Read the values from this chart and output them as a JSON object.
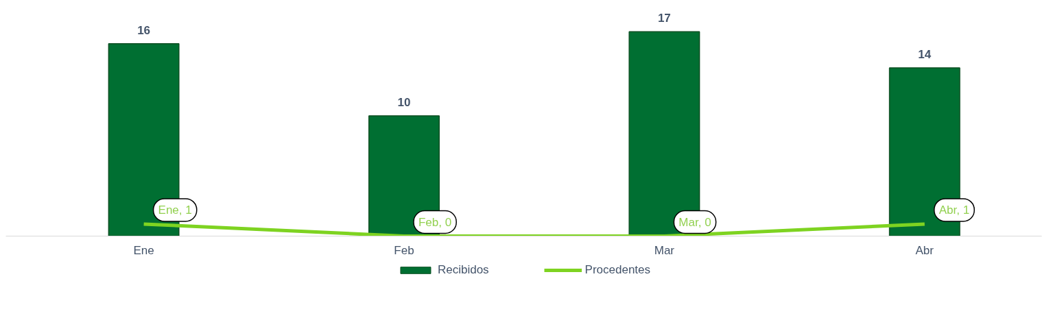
{
  "chart_data": {
    "type": "bar",
    "categories": [
      "Ene",
      "Feb",
      "Mar",
      "Abr"
    ],
    "series": [
      {
        "name": "Recibidos",
        "color": "#006f32",
        "values": [
          16,
          10,
          17,
          14
        ]
      },
      {
        "name": "Procedentes",
        "type": "line",
        "color": "#7ed321",
        "values": [
          1,
          0,
          0,
          1
        ],
        "value_labels": [
          "Ene, 1",
          "Feb, 0",
          "Mar, 0",
          "Abr, 1"
        ]
      }
    ],
    "data_labels": true,
    "tick_labels": "x",
    "legend": "bottom"
  }
}
